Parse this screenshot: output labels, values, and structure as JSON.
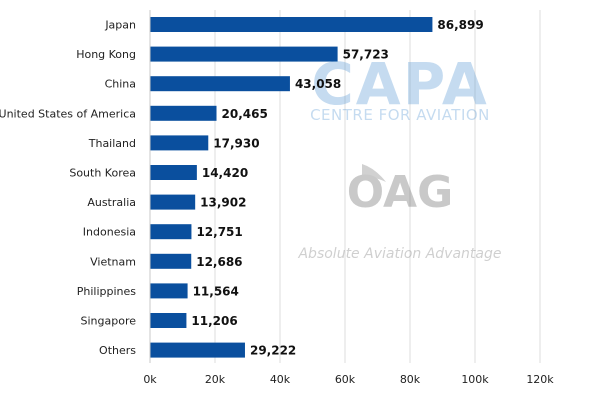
{
  "chart_data": {
    "type": "bar",
    "orientation": "horizontal",
    "categories": [
      "Japan",
      "Hong Kong",
      "China",
      "United States of America",
      "Thailand",
      "South Korea",
      "Australia",
      "Indonesia",
      "Vietnam",
      "Philippines",
      "Singapore",
      "Others"
    ],
    "values": [
      86899,
      57723,
      43058,
      20465,
      17930,
      14420,
      13902,
      12751,
      12686,
      11564,
      11206,
      29222
    ],
    "value_labels": [
      "86,899",
      "57,723",
      "43,058",
      "20,465",
      "17,930",
      "14,420",
      "13,902",
      "12,751",
      "12,686",
      "11,564",
      "11,206",
      "29,222"
    ],
    "xlim": [
      0,
      120000
    ],
    "xticks": [
      0,
      20000,
      40000,
      60000,
      80000,
      100000,
      120000
    ],
    "xtick_labels": [
      "0k",
      "20k",
      "40k",
      "60k",
      "80k",
      "100k",
      "120k"
    ],
    "grid": true,
    "bar_color": "#0a4f9e",
    "title": "",
    "xlabel": "",
    "ylabel": ""
  },
  "watermarks": {
    "capa_logo": "CAPA",
    "capa_tagline": "CENTRE FOR AVIATION",
    "oag_logo": "OAG",
    "oag_tagline": "Absolute Aviation Advantage"
  }
}
